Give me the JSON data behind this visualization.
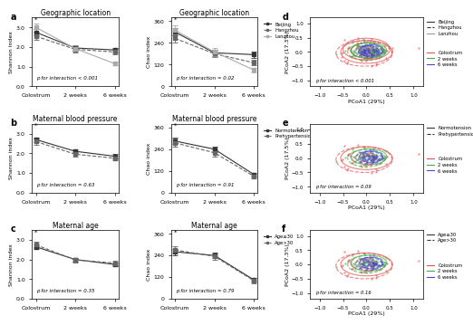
{
  "timepoints": [
    "Colostrum",
    "2 weeks",
    "6 weeks"
  ],
  "panel_a_shannon": {
    "title": "Geographic location",
    "ylabel": "Shannon index",
    "p_text": "p for interaction < 0.001",
    "series": {
      "Beijing": {
        "means": [
          2.75,
          1.95,
          1.85
        ],
        "errors": [
          0.15,
          0.12,
          0.12
        ],
        "color": "#333333",
        "ls": "-"
      },
      "Hangzhou": {
        "means": [
          2.55,
          1.88,
          1.75
        ],
        "errors": [
          0.18,
          0.14,
          0.14
        ],
        "color": "#333333",
        "ls": "--"
      },
      "Lanzhou": {
        "means": [
          3.0,
          1.92,
          1.15
        ],
        "errors": [
          0.2,
          0.15,
          0.1
        ],
        "color": "#999999",
        "ls": "-"
      }
    },
    "ylim": [
      0.0,
      3.5
    ],
    "yticks": [
      0.0,
      1.0,
      2.0,
      3.0
    ]
  },
  "panel_a_chao": {
    "title": "Geographic location",
    "ylabel": "Chao index",
    "p_text": "p for interaction = 0.02",
    "series": {
      "Beijing": {
        "means": [
          300,
          185,
          175
        ],
        "errors": [
          20,
          18,
          16
        ],
        "color": "#333333",
        "ls": "-"
      },
      "Hangzhou": {
        "means": [
          265,
          180,
          130
        ],
        "errors": [
          22,
          20,
          15
        ],
        "color": "#333333",
        "ls": "--"
      },
      "Lanzhou": {
        "means": [
          310,
          190,
          90
        ],
        "errors": [
          25,
          22,
          12
        ],
        "color": "#999999",
        "ls": "-"
      }
    },
    "ylim": [
      0,
      380
    ],
    "yticks": [
      0,
      120,
      240,
      360
    ]
  },
  "panel_b_shannon": {
    "title": "Maternal blood pressure",
    "ylabel": "Shannon index",
    "p_text": "p for interaction = 0.63",
    "series": {
      "Normotension": {
        "means": [
          2.7,
          2.1,
          1.85
        ],
        "errors": [
          0.12,
          0.1,
          0.1
        ],
        "color": "#333333",
        "ls": "-"
      },
      "Prehypertension": {
        "means": [
          2.6,
          1.95,
          1.75
        ],
        "errors": [
          0.15,
          0.12,
          0.12
        ],
        "color": "#333333",
        "ls": "--"
      }
    },
    "ylim": [
      0.0,
      3.5
    ],
    "yticks": [
      0.0,
      1.0,
      2.0,
      3.0
    ]
  },
  "panel_b_chao": {
    "title": "Maternal blood pressure",
    "ylabel": "Chao index",
    "p_text": "p for interaction = 0.91",
    "series": {
      "Normotension": {
        "means": [
          285,
          240,
          100
        ],
        "errors": [
          18,
          16,
          10
        ],
        "color": "#333333",
        "ls": "-"
      },
      "Prehypertension": {
        "means": [
          275,
          220,
          90
        ],
        "errors": [
          22,
          20,
          12
        ],
        "color": "#333333",
        "ls": "--"
      }
    },
    "ylim": [
      0,
      380
    ],
    "yticks": [
      0,
      120,
      240,
      360
    ]
  },
  "panel_c_shannon": {
    "title": "Maternal age",
    "ylabel": "Shannon index",
    "p_text": "p for interaction = 0.35",
    "series": {
      "Age≤30": {
        "means": [
          2.65,
          2.0,
          1.75
        ],
        "errors": [
          0.12,
          0.1,
          0.1
        ],
        "color": "#333333",
        "ls": "-"
      },
      "Age>30": {
        "means": [
          2.75,
          1.98,
          1.82
        ],
        "errors": [
          0.14,
          0.12,
          0.12
        ],
        "color": "#333333",
        "ls": "--"
      }
    },
    "ylim": [
      0.0,
      3.5
    ],
    "yticks": [
      0.0,
      1.0,
      2.0,
      3.0
    ]
  },
  "panel_c_chao": {
    "title": "Maternal age",
    "ylabel": "Chao index",
    "p_text": "p for interaction = 0.79",
    "series": {
      "Age≤30": {
        "means": [
          260,
          240,
          105
        ],
        "errors": [
          18,
          16,
          12
        ],
        "color": "#333333",
        "ls": "-"
      },
      "Age>30": {
        "means": [
          270,
          235,
          100
        ],
        "errors": [
          20,
          18,
          14
        ],
        "color": "#333333",
        "ls": "--"
      }
    },
    "ylim": [
      0,
      380
    ],
    "yticks": [
      0,
      120,
      240,
      360
    ]
  },
  "pcoa_ellipse_colors": {
    "Beijing": "#333333",
    "Hangzhou": "#333333",
    "Lanzhou": "#999999",
    "Normotension": "#333333",
    "Prehypertension": "#333333",
    "Age30l": "#333333",
    "Age30g": "#999999"
  },
  "timepoint_colors": {
    "Colostrum": "#e05050",
    "2 weeks": "#44aa44",
    "6 weeks": "#4444cc"
  },
  "panel_d": {
    "p_text": "p for interaction < 0.001",
    "xlabel": "PCoA1 (29%)",
    "ylabel": "PCoA2 (17.3%)",
    "xlim": [
      -1.2,
      1.2
    ],
    "ylim": [
      -1.2,
      1.2
    ],
    "legend1": [
      "Beijing",
      "Hangzhou",
      "Lanzhou"
    ],
    "legend1_ls": [
      "-",
      "--",
      "-"
    ],
    "legend1_colors": [
      "#333333",
      "#333333",
      "#999999"
    ]
  },
  "panel_e": {
    "p_text": "p for interaction = 0.09",
    "xlabel": "PCoA1 (29%)",
    "ylabel": "PCoA2 (17.5%)",
    "xlim": [
      -1.2,
      1.2
    ],
    "ylim": [
      -1.2,
      1.2
    ],
    "legend1": [
      "Normotension",
      "Prehypertension"
    ],
    "legend1_ls": [
      "-",
      "--"
    ],
    "legend1_colors": [
      "#333333",
      "#333333"
    ]
  },
  "panel_f": {
    "p_text": "p for interaction = 0.16",
    "xlabel": "PCoA1 (29%)",
    "ylabel": "PCoA2 (17.3%)",
    "xlim": [
      -1.2,
      1.2
    ],
    "ylim": [
      -1.2,
      1.2
    ],
    "legend1": [
      "Age≤30",
      "Age>30"
    ],
    "legend1_ls": [
      "-",
      "--"
    ],
    "legend1_colors": [
      "#333333",
      "#333333"
    ]
  }
}
